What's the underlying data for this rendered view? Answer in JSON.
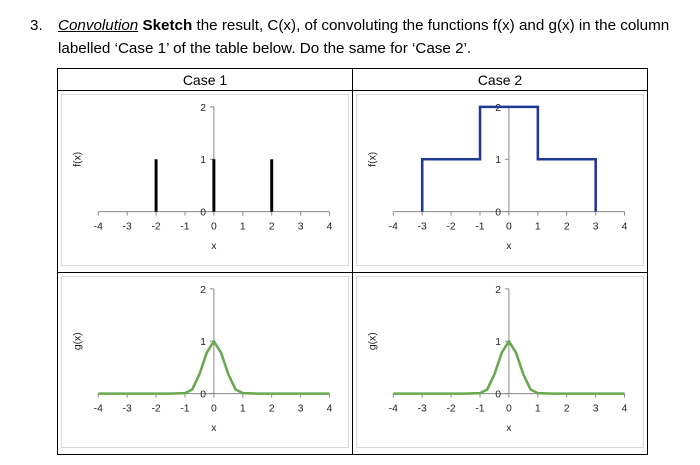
{
  "question": {
    "number": "3.",
    "keyword_italic": "Convolution",
    "keyword_bold": "Sketch",
    "text_rest": " the result, C(x), of convoluting the functions f(x) and g(x) in the column labelled ‘Case 1’ of the table below. Do the same for ‘Case 2’."
  },
  "table": {
    "headers": [
      "Case 1",
      "Case 2"
    ]
  },
  "chart_data": [
    {
      "id": "case1-f",
      "type": "line",
      "style": "impulses",
      "ylabel": "f(x)",
      "xlabel": "x",
      "xlim": [
        -4,
        4
      ],
      "ylim": [
        0,
        2
      ],
      "xticks": [
        -4,
        -3,
        -2,
        -1,
        0,
        1,
        2,
        3,
        4
      ],
      "yticks": [
        0,
        1,
        2
      ],
      "color": "#000000",
      "x": [
        -2,
        0,
        2
      ],
      "y": [
        1,
        1,
        1
      ]
    },
    {
      "id": "case2-f",
      "type": "line",
      "style": "step",
      "ylabel": "f(x)",
      "xlabel": "x",
      "xlim": [
        -4,
        4
      ],
      "ylim": [
        0,
        2
      ],
      "xticks": [
        -4,
        -3,
        -2,
        -1,
        0,
        1,
        2,
        3,
        4
      ],
      "yticks": [
        0,
        1,
        2
      ],
      "color": "#1f3a93",
      "x": [
        -3,
        -3,
        -1,
        -1,
        1,
        1,
        3,
        3
      ],
      "y": [
        0,
        1,
        1,
        2,
        2,
        1,
        1,
        0
      ]
    },
    {
      "id": "case1-g",
      "type": "line",
      "style": "curve",
      "ylabel": "g(x)",
      "xlabel": "x",
      "xlim": [
        -4,
        4
      ],
      "ylim": [
        0,
        2
      ],
      "xticks": [
        -4,
        -3,
        -2,
        -1,
        0,
        1,
        2,
        3,
        4
      ],
      "yticks": [
        0,
        1,
        2
      ],
      "color": "#6aa84f",
      "x": [
        -4,
        -1.5,
        -1,
        -0.75,
        -0.5,
        -0.25,
        0,
        0.25,
        0.5,
        0.75,
        1,
        1.5,
        4
      ],
      "y": [
        0,
        0,
        0.01,
        0.08,
        0.37,
        0.78,
        1,
        0.78,
        0.37,
        0.08,
        0.01,
        0,
        0
      ]
    },
    {
      "id": "case2-g",
      "type": "line",
      "style": "curve",
      "ylabel": "g(x)",
      "xlabel": "x",
      "xlim": [
        -4,
        4
      ],
      "ylim": [
        0,
        2
      ],
      "xticks": [
        -4,
        -3,
        -2,
        -1,
        0,
        1,
        2,
        3,
        4
      ],
      "yticks": [
        0,
        1,
        2
      ],
      "color": "#6aa84f",
      "x": [
        -4,
        -1.5,
        -1,
        -0.75,
        -0.5,
        -0.25,
        0,
        0.25,
        0.5,
        0.75,
        1,
        1.5,
        4
      ],
      "y": [
        0,
        0,
        0.01,
        0.08,
        0.37,
        0.78,
        1,
        0.78,
        0.37,
        0.08,
        0.01,
        0,
        0
      ]
    }
  ]
}
